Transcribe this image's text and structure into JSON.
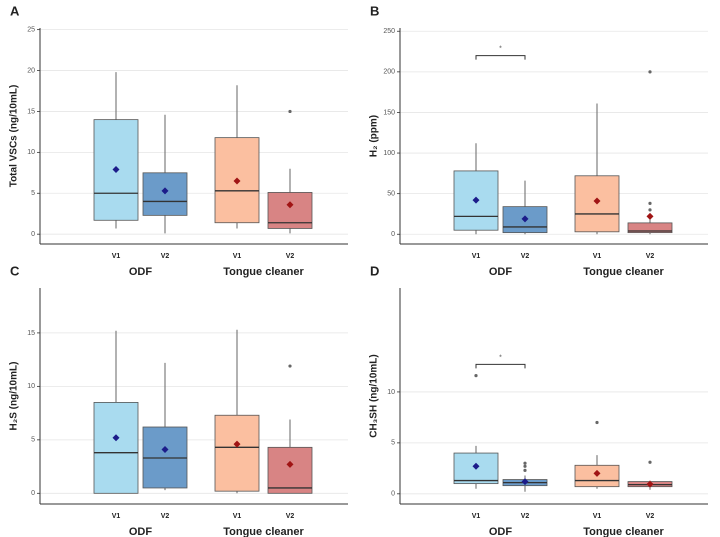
{
  "chart_data": [
    {
      "type": "box",
      "panel": "A",
      "ylabel": "Total VSCs (ng/10mL)",
      "ylim": [
        -1.2,
        25.2
      ],
      "yticks": [
        0,
        5,
        10,
        15,
        20,
        25
      ],
      "grid": true,
      "groups": [
        {
          "name": "ODF",
          "mean_color": "#1c1c8a",
          "boxes": [
            {
              "name": "V1",
              "color": "#a9dbef",
              "min": 0.7,
              "q1": 1.7,
              "median": 5,
              "q3": 14,
              "max": 19.8,
              "mean": 7.9,
              "outliers": []
            },
            {
              "name": "V2",
              "color": "#6b9bc9",
              "min": 0.1,
              "q1": 2.3,
              "median": 4,
              "q3": 7.5,
              "max": 14.6,
              "mean": 5.3,
              "outliers": []
            }
          ]
        },
        {
          "name": "Tongue cleaner",
          "mean_color": "#a01414",
          "boxes": [
            {
              "name": "V1",
              "color": "#fbbfa0",
              "min": 0.7,
              "q1": 1.4,
              "median": 5.3,
              "q3": 11.8,
              "max": 18.2,
              "mean": 6.5,
              "outliers": []
            },
            {
              "name": "V2",
              "color": "#d88484",
              "min": 0.1,
              "q1": 0.7,
              "median": 1.4,
              "q3": 5.1,
              "max": 8,
              "mean": 3.6,
              "outliers": [
                15
              ]
            }
          ]
        }
      ]
    },
    {
      "type": "box",
      "panel": "B",
      "ylabel": "H₂ (ppm)",
      "ylim": [
        -12,
        254
      ],
      "yticks": [
        0,
        50,
        100,
        150,
        200,
        250
      ],
      "grid": true,
      "groups": [
        {
          "name": "ODF",
          "mean_color": "#1c1c8a",
          "significance": {
            "label": "*",
            "y": 220
          },
          "boxes": [
            {
              "name": "V1",
              "color": "#a9dbef",
              "min": 0,
              "q1": 5,
              "median": 22,
              "q3": 78,
              "max": 112,
              "mean": 42,
              "outliers": []
            },
            {
              "name": "V2",
              "color": "#6b9bc9",
              "min": 0,
              "q1": 2,
              "median": 9,
              "q3": 34,
              "max": 66,
              "mean": 19,
              "outliers": []
            }
          ]
        },
        {
          "name": "Tongue cleaner",
          "mean_color": "#a01414",
          "boxes": [
            {
              "name": "V1",
              "color": "#fbbfa0",
              "min": 0,
              "q1": 3,
              "median": 25,
              "q3": 72,
              "max": 161,
              "mean": 41,
              "outliers": []
            },
            {
              "name": "V2",
              "color": "#d88484",
              "min": 0,
              "q1": 2,
              "median": 4,
              "q3": 14,
              "max": 22,
              "mean": 22,
              "outliers": [
                30,
                38,
                200
              ]
            }
          ]
        }
      ]
    },
    {
      "type": "box",
      "panel": "C",
      "ylabel": "H₂S (ng/10mL)",
      "ylim": [
        -1,
        19.2
      ],
      "yticks": [
        0,
        5,
        10,
        15
      ],
      "grid": true,
      "groups": [
        {
          "name": "ODF",
          "mean_color": "#1c1c8a",
          "boxes": [
            {
              "name": "V1",
              "color": "#a9dbef",
              "min": 0,
              "q1": 0,
              "median": 3.8,
              "q3": 8.5,
              "max": 15.2,
              "mean": 5.2,
              "outliers": []
            },
            {
              "name": "V2",
              "color": "#6b9bc9",
              "min": 0.3,
              "q1": 0.5,
              "median": 3.3,
              "q3": 6.2,
              "max": 12.2,
              "mean": 4.1,
              "outliers": []
            }
          ]
        },
        {
          "name": "Tongue cleaner",
          "mean_color": "#a01414",
          "boxes": [
            {
              "name": "V1",
              "color": "#fbbfa0",
              "min": 0,
              "q1": 0.2,
              "median": 4.3,
              "q3": 7.3,
              "max": 15.3,
              "mean": 4.6,
              "outliers": []
            },
            {
              "name": "V2",
              "color": "#d88484",
              "min": 0,
              "q1": 0,
              "median": 0.5,
              "q3": 4.3,
              "max": 6.9,
              "mean": 2.7,
              "outliers": [
                11.9
              ]
            }
          ]
        }
      ]
    },
    {
      "type": "box",
      "panel": "D",
      "ylabel": "CH₃SH (ng/10mL)",
      "ylim": [
        -1,
        20.2
      ],
      "yticks": [
        0,
        5,
        10
      ],
      "grid": true,
      "groups": [
        {
          "name": "ODF",
          "mean_color": "#1c1c8a",
          "significance": {
            "label": "*",
            "y": 12.7
          },
          "boxes": [
            {
              "name": "V1",
              "color": "#a9dbef",
              "min": 0.5,
              "q1": 1.0,
              "median": 1.3,
              "q3": 4.0,
              "max": 4.7,
              "mean": 2.7,
              "outliers": [
                11.6
              ]
            },
            {
              "name": "V2",
              "color": "#6b9bc9",
              "min": 0.2,
              "q1": 0.8,
              "median": 1.1,
              "q3": 1.4,
              "max": 1.8,
              "mean": 1.2,
              "outliers": [
                2.3,
                2.7,
                3.0
              ]
            }
          ]
        },
        {
          "name": "Tongue cleaner",
          "mean_color": "#a01414",
          "boxes": [
            {
              "name": "V1",
              "color": "#fbbfa0",
              "min": 0.5,
              "q1": 0.7,
              "median": 1.3,
              "q3": 2.8,
              "max": 3.8,
              "mean": 2.0,
              "outliers": [
                7.0
              ]
            },
            {
              "name": "V2",
              "color": "#d88484",
              "min": 0.4,
              "q1": 0.7,
              "median": 0.9,
              "q3": 1.2,
              "max": 1.3,
              "mean": 0.95,
              "outliers": [
                3.1
              ]
            }
          ]
        }
      ]
    }
  ]
}
